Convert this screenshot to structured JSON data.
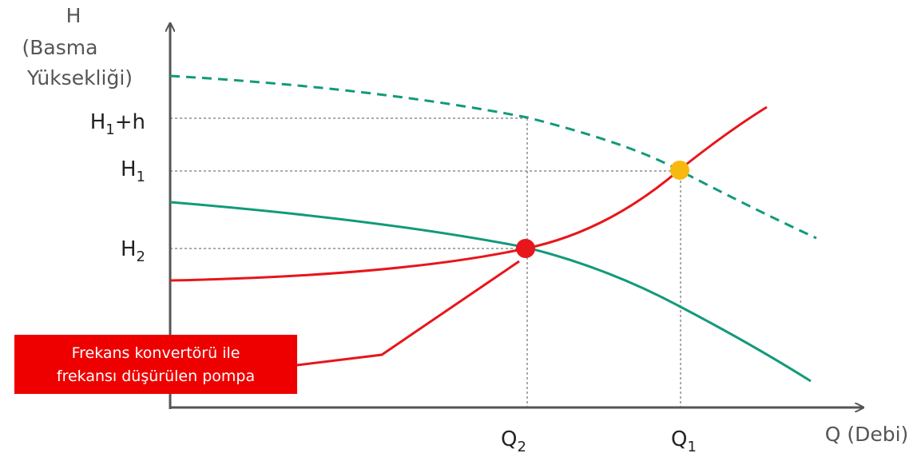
{
  "y_axis": {
    "lines": [
      "H",
      "(Basma",
      "Yüksekliği)"
    ]
  },
  "x_axis": {
    "label": "Q (Debi)"
  },
  "h_labels": [
    {
      "base": "H",
      "sub": "1",
      "suffix": "+h"
    },
    {
      "base": "H",
      "sub": "1"
    },
    {
      "base": "H",
      "sub": "2"
    }
  ],
  "q_labels": [
    {
      "base": "Q",
      "sub": "2"
    },
    {
      "base": "Q",
      "sub": "1"
    }
  ],
  "annotation": {
    "lines": [
      "Frekans konvertörü ile",
      "frekansı düşürülen pompa"
    ]
  }
}
